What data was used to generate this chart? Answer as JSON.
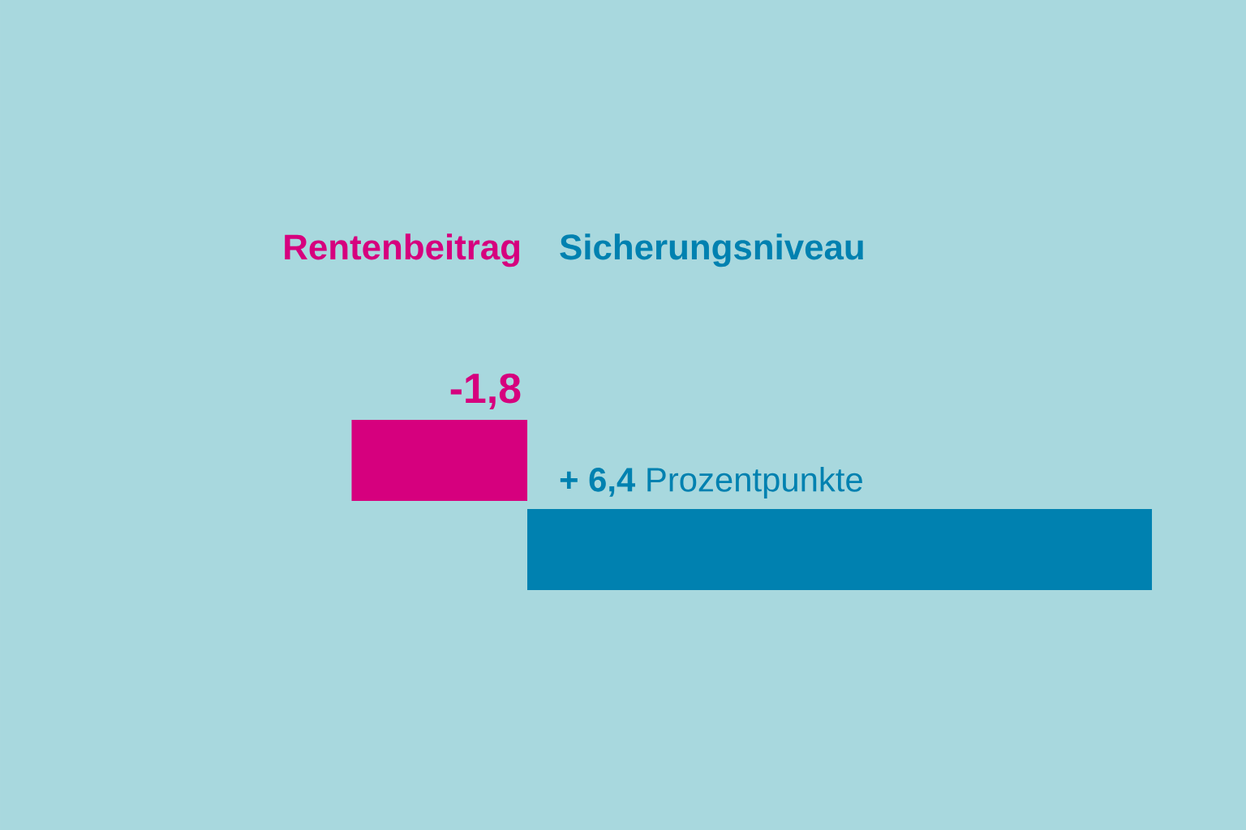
{
  "chart_data": {
    "type": "bar",
    "orientation": "horizontal",
    "categories": [
      null
    ],
    "series": [
      {
        "name": "Rentenbeitrag",
        "color": "#d6007e",
        "values": [
          -1.8
        ],
        "value_labels": [
          "**-1,8**"
        ]
      },
      {
        "name": "Sicherungsniveau",
        "color": "#0081b0",
        "values": [
          6.4
        ],
        "value_labels": [
          "**+ 6,4** Prozentpunkte"
        ]
      }
    ],
    "tick_labels": false
  }
}
